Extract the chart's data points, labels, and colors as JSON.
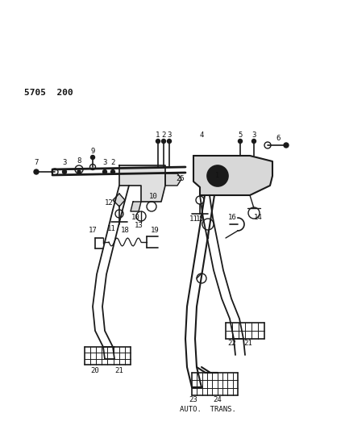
{
  "title": "5705  200",
  "subtitle": "AUTO.  TRANS.",
  "bg_color": "#ffffff",
  "lc": "#1a1a1a",
  "tc": "#111111",
  "figsize": [
    4.28,
    5.33
  ],
  "dpi": 100,
  "xlim": [
    0,
    428
  ],
  "ylim": [
    0,
    533
  ]
}
